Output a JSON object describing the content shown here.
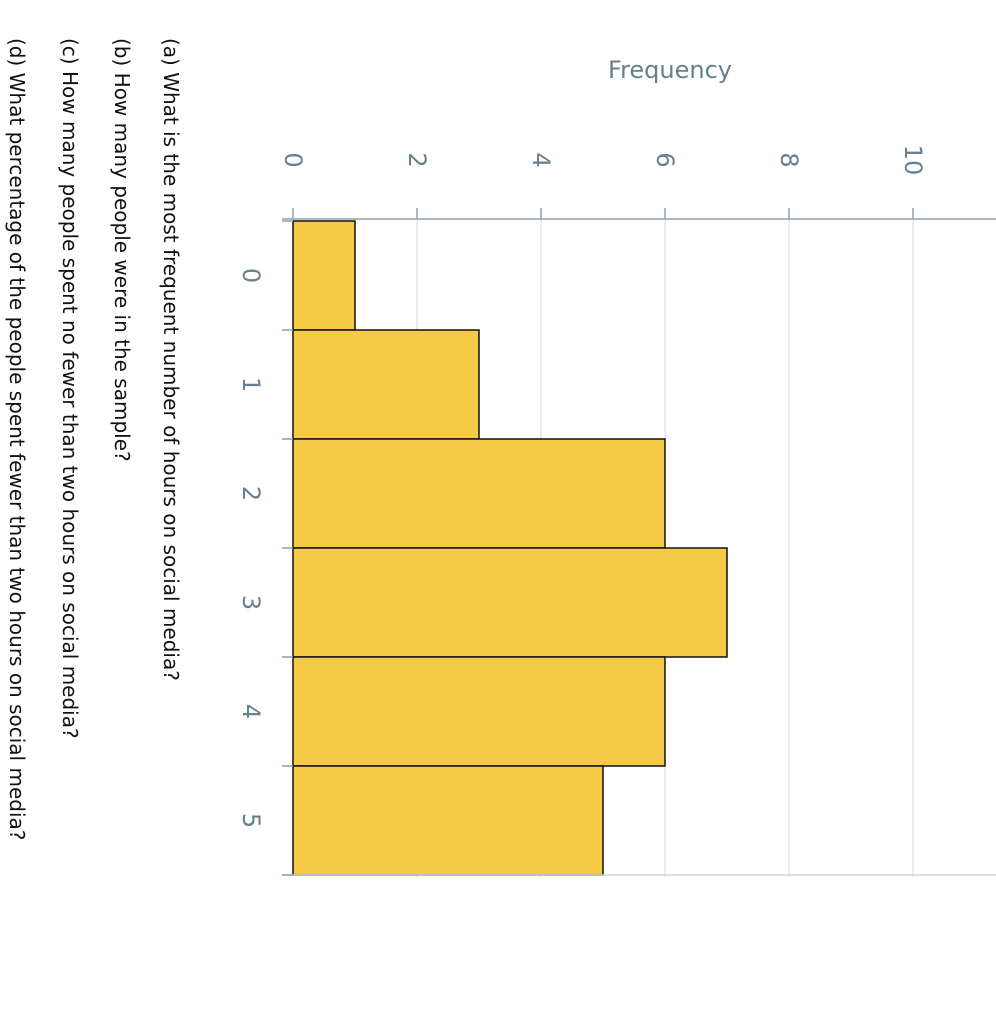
{
  "chart_data": {
    "type": "bar",
    "orientation": "rotated 90° clockwise",
    "title": "",
    "xlabel": "",
    "ylabel": "Frequency",
    "categories": [
      "0",
      "1",
      "2",
      "3",
      "4",
      "5"
    ],
    "values": [
      1,
      3,
      6,
      7,
      6,
      5
    ],
    "yticks": [
      0,
      2,
      4,
      6,
      8,
      10
    ],
    "ylim": [
      0,
      11.3
    ],
    "grid": true,
    "bar_color": "#f5ca47",
    "bar_edge_color": "#111111"
  },
  "questions": [
    "(a) What is the most frequent number of hours on social media?",
    "(b) How many people were in the sample?",
    "(c) How many people spent no fewer than two hours on social media?",
    "(d) What percentage of the people spent fewer than two hours on social media?"
  ]
}
